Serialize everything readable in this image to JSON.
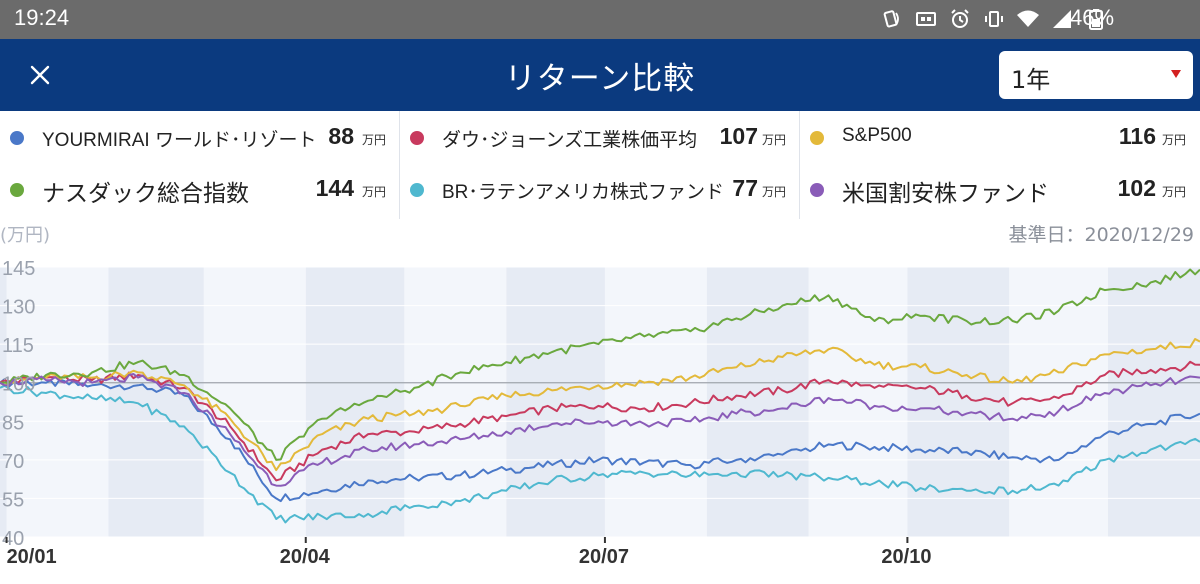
{
  "status_bar": {
    "time": "19:24",
    "battery": "46%",
    "icons": [
      "nfc-icon",
      "cast-icon",
      "alarm-icon",
      "vibrate-icon",
      "wifi-icon",
      "signal-icon",
      "battery-icon"
    ]
  },
  "header": {
    "title": "リターン比較",
    "period": "1年",
    "close_icon": "close-icon"
  },
  "legend": [
    {
      "name": "YOURMIRAI ワールド･リゾート",
      "value": "88",
      "unit": "万円",
      "color": "#4a78c8"
    },
    {
      "name": "ダウ･ジョーンズ工業株価平均",
      "value": "107",
      "unit": "万円",
      "color": "#c83a5e"
    },
    {
      "name": "S&P500",
      "value": "116",
      "unit": "万円",
      "color": "#e3b93a"
    },
    {
      "name": "ナスダック総合指数",
      "value": "144",
      "unit": "万円",
      "color": "#6aa83e"
    },
    {
      "name": "BR･ラテンアメリカ株式ファンド",
      "value": "77",
      "unit": "万円",
      "color": "#4fb8cf"
    },
    {
      "name": "米国割安株ファンド",
      "value": "102",
      "unit": "万円",
      "color": "#8a5cb8"
    }
  ],
  "chart_meta": {
    "unit_label": "(万円)",
    "base_date_label": "基準日：",
    "base_date": "2020/12/29"
  },
  "chart_data": {
    "type": "line",
    "x_labels": [
      "20/01",
      "20/04",
      "20/07",
      "20/10"
    ],
    "y_ticks": [
      145,
      130,
      115,
      100,
      85,
      70,
      55,
      40
    ],
    "ylim": [
      40,
      145
    ],
    "reference_value": 100,
    "x": [
      "2019-12-30",
      "2020-01-13",
      "2020-01-27",
      "2020-02-10",
      "2020-02-24",
      "2020-03-09",
      "2020-03-23",
      "2020-04-06",
      "2020-04-20",
      "2020-05-04",
      "2020-05-18",
      "2020-06-01",
      "2020-06-15",
      "2020-06-29",
      "2020-07-13",
      "2020-07-27",
      "2020-08-10",
      "2020-08-24",
      "2020-09-07",
      "2020-09-21",
      "2020-10-05",
      "2020-10-19",
      "2020-11-02",
      "2020-11-16",
      "2020-11-30",
      "2020-12-14",
      "2020-12-29"
    ],
    "series": [
      {
        "name": "YOURMIRAI ワールド･リゾート",
        "color": "#4a78c8",
        "values": [
          100,
          100,
          99,
          99,
          95,
          78,
          55,
          58,
          62,
          63,
          64,
          66,
          68,
          70,
          69,
          68,
          70,
          72,
          76,
          75,
          74,
          73,
          71,
          70,
          80,
          84,
          88
        ]
      },
      {
        "name": "ダウ･ジョーンズ工業株価平均",
        "color": "#c83a5e",
        "values": [
          100,
          102,
          101,
          103,
          98,
          83,
          62,
          74,
          80,
          81,
          84,
          87,
          90,
          91,
          90,
          92,
          95,
          97,
          101,
          98,
          98,
          95,
          92,
          94,
          103,
          105,
          107
        ]
      },
      {
        "name": "S&P500",
        "color": "#e3b93a",
        "values": [
          100,
          102,
          102,
          104,
          99,
          86,
          66,
          80,
          86,
          88,
          91,
          95,
          97,
          99,
          100,
          102,
          106,
          110,
          113,
          107,
          106,
          103,
          100,
          104,
          111,
          113,
          116
        ]
      },
      {
        "name": "ナスダック総合指数",
        "color": "#6aa83e",
        "values": [
          100,
          103,
          104,
          108,
          103,
          90,
          70,
          86,
          93,
          98,
          104,
          108,
          112,
          115,
          118,
          120,
          125,
          130,
          134,
          124,
          126,
          124,
          124,
          128,
          136,
          139,
          144
        ]
      },
      {
        "name": "BR･ラテンアメリカ株式ファンド",
        "color": "#4fb8cf",
        "values": [
          98,
          96,
          94,
          92,
          83,
          65,
          47,
          48,
          49,
          52,
          54,
          58,
          62,
          64,
          65,
          64,
          65,
          64,
          63,
          61,
          59,
          58,
          58,
          60,
          70,
          74,
          77
        ]
      },
      {
        "name": "米国割安株ファンド",
        "color": "#8a5cb8",
        "values": [
          100,
          101,
          100,
          102,
          96,
          80,
          60,
          69,
          74,
          76,
          78,
          81,
          84,
          85,
          84,
          85,
          88,
          90,
          94,
          91,
          90,
          88,
          86,
          89,
          96,
          99,
          102
        ]
      }
    ],
    "grid": true,
    "legend_position": "top"
  }
}
